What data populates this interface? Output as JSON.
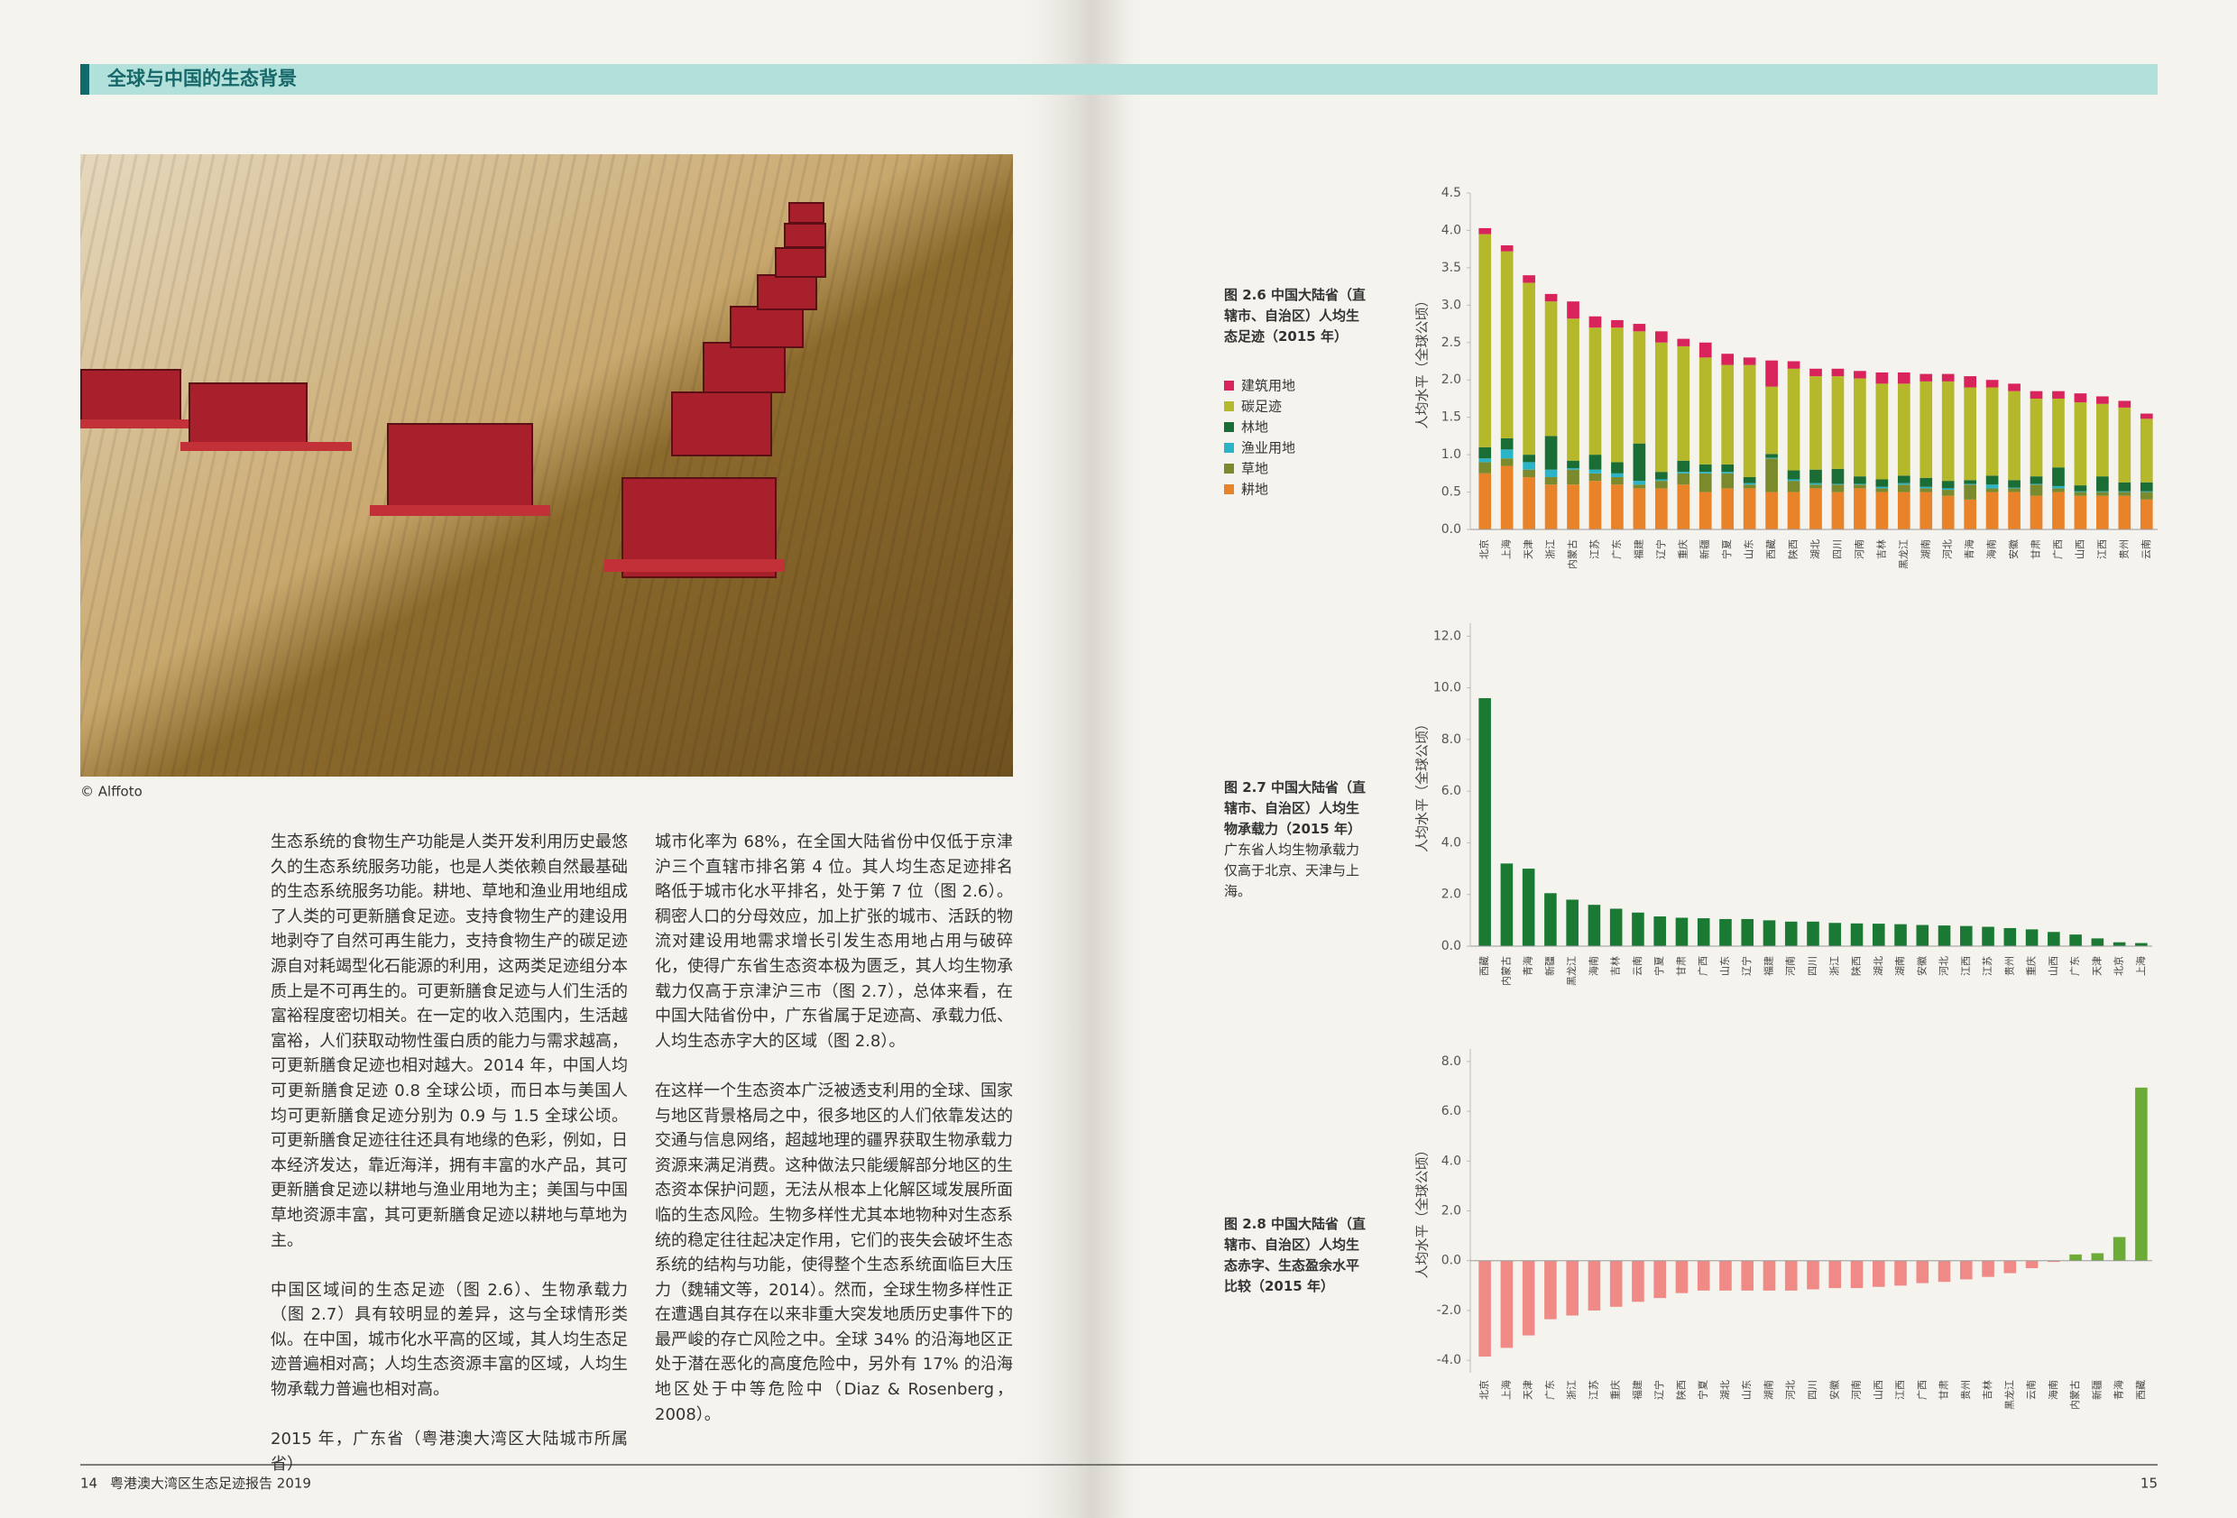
{
  "header": {
    "title": "全球与中国的生态背景"
  },
  "photo_credit": "© Alffoto",
  "body": {
    "column1": [
      "生态系统的食物生产功能是人类开发利用历史最悠久的生态系统服务功能，也是人类依赖自然最基础的生态系统服务功能。耕地、草地和渔业用地组成了人类的可更新膳食足迹。支持食物生产的建设用地剥夺了自然可再生能力，支持食物生产的碳足迹源自对耗竭型化石能源的利用，这两类足迹组分本质上是不可再生的。可更新膳食足迹与人们生活的富裕程度密切相关。在一定的收入范围内，生活越富裕，人们获取动物性蛋白质的能力与需求越高，可更新膳食足迹也相对越大。2014 年，中国人均可更新膳食足迹 0.8 全球公顷，而日本与美国人均可更新膳食足迹分别为 0.9 与 1.5 全球公顷。可更新膳食足迹往往还具有地缘的色彩，例如，日本经济发达，靠近海洋，拥有丰富的水产品，其可更新膳食足迹以耕地与渔业用地为主；美国与中国草地资源丰富，其可更新膳食足迹以耕地与草地为主。",
      "中国区域间的生态足迹（图 2.6）、生物承载力（图 2.7）具有较明显的差异，这与全球情形类似。在中国，城市化水平高的区域，其人均生态足迹普遍相对高；人均生态资源丰富的区域，人均生物承载力普遍也相对高。",
      "2015 年，广东省（粤港澳大湾区大陆城市所属省）"
    ],
    "column2": [
      "城市化率为 68%，在全国大陆省份中仅低于京津沪三个直辖市排名第 4 位。其人均生态足迹排名略低于城市化水平排名，处于第 7 位（图 2.6）。稠密人口的分母效应，加上扩张的城市、活跃的物流对建设用地需求增长引发生态用地占用与破碎化，使得广东省生态资本极为匮乏，其人均生物承载力仅高于京津沪三市（图 2.7），总体来看，在中国大陆省份中，广东省属于足迹高、承载力低、人均生态赤字大的区域（图 2.8）。",
      "在这样一个生态资本广泛被透支利用的全球、国家与地区背景格局之中，很多地区的人们依靠发达的交通与信息网络，超越地理的疆界获取生物承载力资源来满足消费。这种做法只能缓解部分地区的生态资本保护问题，无法从根本上化解区域发展所面临的生态风险。生物多样性尤其本地物种对生态系统的稳定往往起决定作用，它们的丧失会破坏生态系统的结构与功能，使得整个生态系统面临巨大压力（魏辅文等，2014）。然而，全球生物多样性正在遭遇自其存在以来非重大突发地质历史事件下的最严峻的存亡风险之中。全球 34% 的沿海地区正处于潜在恶化的高度危险中，另外有 17% 的沿海地区处于中等危险中（Diaz & Rosenberg，2008）。"
    ]
  },
  "chart_data": [
    {
      "type": "stacked_bar",
      "title": "图 2.6 中国大陆省（直辖市、自治区）人均生态足迹（2015 年）",
      "ylabel": "人均水平（全球公顷）",
      "categories": [
        "北京",
        "上海",
        "天津",
        "浙江",
        "内蒙古",
        "江苏",
        "广东",
        "福建",
        "辽宁",
        "重庆",
        "新疆",
        "宁夏",
        "山东",
        "西藏",
        "陕西",
        "湖北",
        "四川",
        "河南",
        "吉林",
        "黑龙江",
        "湖南",
        "河北",
        "青海",
        "海南",
        "安徽",
        "甘肃",
        "广西",
        "山西",
        "江西",
        "贵州",
        "云南"
      ],
      "series": [
        {
          "name": "耕地",
          "color": "#e9832a",
          "values": [
            0.75,
            0.85,
            0.7,
            0.6,
            0.6,
            0.65,
            0.6,
            0.55,
            0.55,
            0.6,
            0.5,
            0.55,
            0.55,
            0.5,
            0.5,
            0.55,
            0.5,
            0.55,
            0.5,
            0.5,
            0.5,
            0.45,
            0.4,
            0.5,
            0.5,
            0.45,
            0.5,
            0.45,
            0.45,
            0.45,
            0.4
          ]
        },
        {
          "name": "草地",
          "color": "#7a8a2c",
          "values": [
            0.15,
            0.1,
            0.1,
            0.1,
            0.2,
            0.1,
            0.1,
            0.05,
            0.1,
            0.15,
            0.25,
            0.2,
            0.05,
            0.45,
            0.15,
            0.05,
            0.1,
            0.05,
            0.05,
            0.1,
            0.05,
            0.08,
            0.2,
            0.05,
            0.05,
            0.15,
            0.05,
            0.05,
            0.05,
            0.05,
            0.1
          ]
        },
        {
          "name": "渔业用地",
          "color": "#2bb3c8",
          "values": [
            0.05,
            0.12,
            0.1,
            0.1,
            0.02,
            0.05,
            0.05,
            0.05,
            0.02,
            0.02,
            0.02,
            0.02,
            0.02,
            0.01,
            0.02,
            0.02,
            0.01,
            0.01,
            0.02,
            0.02,
            0.02,
            0.02,
            0.01,
            0.05,
            0.01,
            0.01,
            0.03,
            0.01,
            0.01,
            0.01,
            0.01
          ]
        },
        {
          "name": "林地",
          "color": "#1a6e35",
          "values": [
            0.15,
            0.15,
            0.1,
            0.45,
            0.1,
            0.2,
            0.15,
            0.5,
            0.1,
            0.15,
            0.1,
            0.1,
            0.08,
            0.05,
            0.12,
            0.18,
            0.2,
            0.1,
            0.1,
            0.1,
            0.12,
            0.1,
            0.05,
            0.12,
            0.1,
            0.1,
            0.25,
            0.08,
            0.2,
            0.12,
            0.12
          ]
        },
        {
          "name": "碳足迹",
          "color": "#b5b82a",
          "values": [
            2.85,
            2.5,
            2.3,
            1.8,
            1.9,
            1.7,
            1.8,
            1.5,
            1.73,
            1.53,
            1.43,
            1.33,
            1.5,
            0.9,
            1.36,
            1.25,
            1.24,
            1.31,
            1.28,
            1.23,
            1.29,
            1.33,
            1.24,
            1.18,
            1.19,
            1.04,
            0.92,
            1.11,
            0.97,
            1.0,
            0.85
          ]
        },
        {
          "name": "建筑用地",
          "color": "#d8245a",
          "values": [
            0.08,
            0.08,
            0.1,
            0.1,
            0.23,
            0.15,
            0.1,
            0.1,
            0.15,
            0.1,
            0.2,
            0.15,
            0.1,
            0.35,
            0.1,
            0.1,
            0.1,
            0.1,
            0.15,
            0.15,
            0.1,
            0.1,
            0.15,
            0.1,
            0.1,
            0.1,
            0.1,
            0.12,
            0.1,
            0.09,
            0.07
          ]
        }
      ],
      "ylim": [
        0,
        4.5
      ],
      "yticks": [
        {
          "value": 0,
          "label": "0.0"
        },
        0.5,
        {
          "value": 1,
          "label": "1.0"
        },
        1.5,
        {
          "value": 2,
          "label": "2.0"
        },
        2.5,
        {
          "value": 3,
          "label": "3.0"
        },
        3.5,
        {
          "value": 4,
          "label": "4.0"
        },
        4.5
      ]
    },
    {
      "type": "bar",
      "title": "图 2.7 中国大陆省（直辖市、自治区）人均生物承载力（2015 年）",
      "note": "广东省人均生物承载力仅高于北京、天津与上海。",
      "ylabel": "人均水平（全球公顷）",
      "color": "#1a7a33",
      "categories": [
        "西藏",
        "内蒙古",
        "青海",
        "新疆",
        "黑龙江",
        "海南",
        "吉林",
        "云南",
        "宁夏",
        "甘肃",
        "广西",
        "山东",
        "辽宁",
        "福建",
        "河南",
        "四川",
        "浙江",
        "陕西",
        "湖北",
        "湖南",
        "安徽",
        "河北",
        "江西",
        "江苏",
        "贵州",
        "重庆",
        "山西",
        "广东",
        "天津",
        "北京",
        "上海"
      ],
      "values": [
        9.6,
        3.2,
        3.0,
        2.05,
        1.8,
        1.6,
        1.45,
        1.3,
        1.15,
        1.1,
        1.08,
        1.05,
        1.05,
        1.0,
        0.95,
        0.95,
        0.9,
        0.88,
        0.87,
        0.85,
        0.82,
        0.8,
        0.78,
        0.75,
        0.7,
        0.65,
        0.55,
        0.45,
        0.3,
        0.15,
        0.12
      ],
      "ylim": [
        0,
        12.5
      ],
      "yticks": [
        {
          "value": 0,
          "label": "0.0"
        },
        {
          "value": 2,
          "label": "2.0"
        },
        {
          "value": 4,
          "label": "4.0"
        },
        {
          "value": 6,
          "label": "6.0"
        },
        {
          "value": 8,
          "label": "8.0"
        },
        {
          "value": 10,
          "label": "10.0"
        },
        {
          "value": 12,
          "label": "12.0"
        }
      ]
    },
    {
      "type": "bar",
      "title": "图 2.8 中国大陆省（直辖市、自治区）人均生态赤字、生态盈余水平比较（2015 年）",
      "ylabel": "人均水平（全球公顷）",
      "color": "#ef8a86",
      "positive_color": "#6cac36",
      "categories": [
        "北京",
        "上海",
        "天津",
        "广东",
        "浙江",
        "江苏",
        "重庆",
        "福建",
        "辽宁",
        "陕西",
        "宁夏",
        "湖北",
        "山东",
        "湖南",
        "河北",
        "四川",
        "安徽",
        "河南",
        "山西",
        "江西",
        "广西",
        "甘肃",
        "贵州",
        "吉林",
        "黑龙江",
        "云南",
        "海南",
        "内蒙古",
        "新疆",
        "青海",
        "西藏"
      ],
      "values": [
        -3.85,
        -3.5,
        -3.0,
        -2.35,
        -2.2,
        -2.0,
        -1.85,
        -1.65,
        -1.5,
        -1.3,
        -1.2,
        -1.2,
        -1.2,
        -1.2,
        -1.2,
        -1.15,
        -1.1,
        -1.1,
        -1.05,
        -1.0,
        -0.9,
        -0.85,
        -0.75,
        -0.65,
        -0.5,
        -0.3,
        -0.05,
        0.25,
        0.3,
        0.95,
        6.95
      ],
      "ylim": [
        -4.5,
        8.5
      ],
      "yticks": [
        {
          "value": -4,
          "label": "-4.0"
        },
        {
          "value": -2,
          "label": "-2.0"
        },
        {
          "value": 0,
          "label": "0.0"
        },
        {
          "value": 2,
          "label": "2.0"
        },
        {
          "value": 4,
          "label": "4.0"
        },
        {
          "value": 6,
          "label": "6.0"
        },
        {
          "value": 8,
          "label": "8.0"
        }
      ]
    }
  ],
  "footer": {
    "left_page": "14",
    "report": "粤港澳大湾区生态足迹报告 2019",
    "right_page": "15"
  }
}
